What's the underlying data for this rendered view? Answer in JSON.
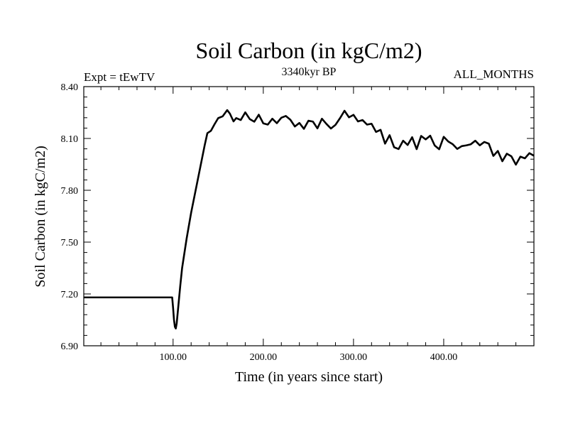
{
  "chart_data": {
    "type": "line",
    "title": "Soil Carbon (in kgC/m2)",
    "subtitle": "3340kyr BP",
    "left_label": "Expt = tEwTV",
    "right_label": "ALL_MONTHS",
    "xlabel": "Time (in years since start)",
    "ylabel": "Soil Carbon (in kgC/m2)",
    "xlim": [
      1,
      500
    ],
    "ylim": [
      6.9,
      8.4
    ],
    "x_ticks": [
      100,
      200,
      300,
      400
    ],
    "x_tick_labels": [
      "100.00",
      "200.00",
      "300.00",
      "400.00"
    ],
    "y_ticks": [
      6.9,
      7.2,
      7.5,
      7.8,
      8.1,
      8.4
    ],
    "y_tick_labels": [
      "6.90",
      "7.20",
      "7.50",
      "7.80",
      "8.10",
      "8.40"
    ],
    "x_minor_step": 20,
    "y_minor_step": 0.06,
    "grid": false,
    "series": [
      {
        "name": "Soil Carbon",
        "color": "#000000",
        "x": [
          1,
          99,
          100,
          101,
          102,
          103,
          104,
          106,
          108,
          110,
          115,
          120,
          125,
          130,
          135,
          138,
          142,
          146,
          150,
          155,
          160,
          163,
          167,
          170,
          175,
          180,
          185,
          190,
          195,
          200,
          205,
          210,
          215,
          220,
          225,
          230,
          235,
          240,
          245,
          250,
          255,
          260,
          265,
          270,
          275,
          280,
          285,
          290,
          295,
          300,
          305,
          310,
          315,
          320,
          325,
          330,
          335,
          340,
          345,
          350,
          355,
          360,
          365,
          370,
          375,
          380,
          385,
          390,
          395,
          400,
          405,
          410,
          415,
          420,
          425,
          430,
          435,
          440,
          445,
          450,
          455,
          460,
          465,
          470,
          475,
          480,
          485,
          490,
          495,
          500
        ],
        "values": [
          7.18,
          7.18,
          7.12,
          7.05,
          7.01,
          7.0,
          7.03,
          7.14,
          7.25,
          7.35,
          7.52,
          7.67,
          7.8,
          7.93,
          8.06,
          8.13,
          8.15,
          8.18,
          8.21,
          8.24,
          8.26,
          8.24,
          8.2,
          8.22,
          8.21,
          8.24,
          8.22,
          8.2,
          8.23,
          8.19,
          8.18,
          8.22,
          8.18,
          8.22,
          8.24,
          8.2,
          8.17,
          8.19,
          8.16,
          8.2,
          8.19,
          8.17,
          8.21,
          8.18,
          8.16,
          8.18,
          8.22,
          8.25,
          8.23,
          8.24,
          8.19,
          8.21,
          8.18,
          8.19,
          8.13,
          8.15,
          8.08,
          8.11,
          8.05,
          8.04,
          8.09,
          8.06,
          8.1,
          8.05,
          8.11,
          8.09,
          8.12,
          8.06,
          8.04,
          8.1,
          8.09,
          8.07,
          8.03,
          8.06,
          8.06,
          8.07,
          8.08,
          8.06,
          8.09,
          8.06,
          8.0,
          8.03,
          7.97,
          8.01,
          7.99,
          7.96,
          7.99,
          7.98,
          8.02,
          8.0
        ]
      }
    ]
  }
}
